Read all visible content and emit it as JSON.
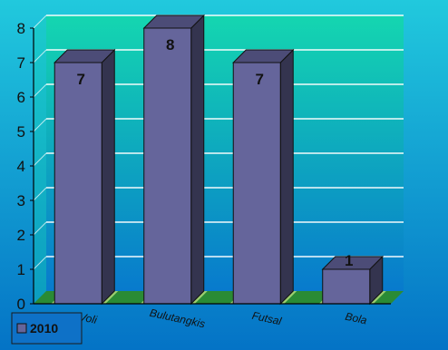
{
  "chart_data": {
    "type": "bar",
    "categories": [
      "Voli",
      "Bulutangkis",
      "Futsal",
      "Bola"
    ],
    "series": [
      {
        "name": "2010",
        "values": [
          7,
          8,
          7,
          1
        ],
        "color": "#65659b"
      }
    ],
    "data_labels": [
      "7",
      "8",
      "7",
      "1"
    ],
    "yticks": [
      "0",
      "1",
      "2",
      "3",
      "4",
      "5",
      "6",
      "7",
      "8"
    ],
    "ylim": [
      0,
      8
    ],
    "grid": true,
    "legend": {
      "position": "bottom-left"
    },
    "colors": {
      "plot_top": "#14d6b0",
      "plot_bottom": "#087acd",
      "background_top": "#21c9dd",
      "background_bottom": "#0473c6",
      "bar_front": "#65659b",
      "bar_side": "#34344f",
      "bar_top": "#4c4c77",
      "floor_light": "#a7d477",
      "floor_dark": "#2a8b35",
      "grid": "#ffffff",
      "axis": "#000000"
    }
  }
}
